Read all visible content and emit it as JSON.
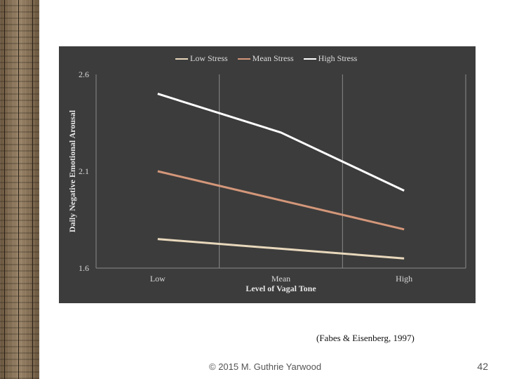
{
  "slide": {
    "citation": "(Fabes & Eisenberg, 1997)",
    "footer": "© 2015 M. Guthrie Yarwood",
    "page_number": "42"
  },
  "chart_data": {
    "type": "line",
    "title": "",
    "xlabel": "Level of Vagal Tone",
    "ylabel": "Daily Negative Emotional Arousal",
    "categories": [
      "Low",
      "Mean",
      "High"
    ],
    "ylim": [
      1.6,
      2.6
    ],
    "yticks": [
      "1.6",
      "2.1",
      "2.6"
    ],
    "legend_position": "top",
    "grid": true,
    "series": [
      {
        "name": "Low Stress",
        "color": "#e8d8bc",
        "values": [
          1.75,
          1.7,
          1.65
        ]
      },
      {
        "name": "Mean Stress",
        "color": "#d4977a",
        "values": [
          2.1,
          1.95,
          1.8
        ]
      },
      {
        "name": "High Stress",
        "color": "#ffffff",
        "values": [
          2.5,
          2.3,
          2.0
        ]
      }
    ]
  }
}
